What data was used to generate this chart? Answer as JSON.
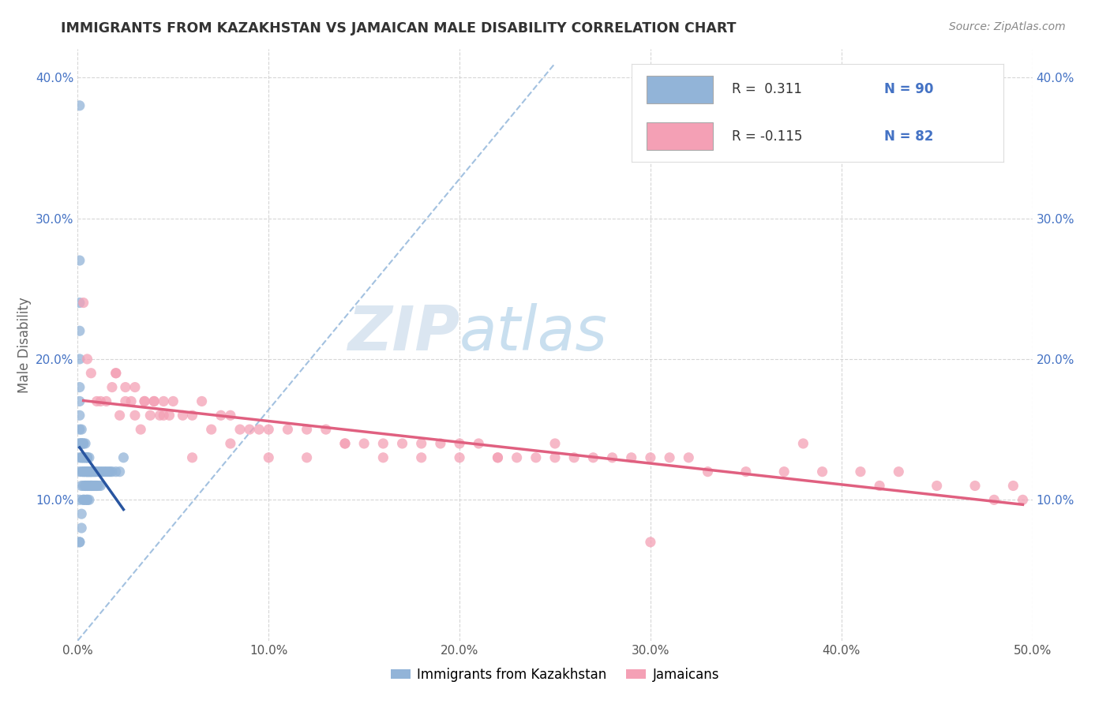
{
  "title": "IMMIGRANTS FROM KAZAKHSTAN VS JAMAICAN MALE DISABILITY CORRELATION CHART",
  "source": "Source: ZipAtlas.com",
  "ylabel": "Male Disability",
  "x_min": 0.0,
  "x_max": 0.5,
  "y_min": 0.0,
  "y_max": 0.42,
  "x_tick_labels": [
    "0.0%",
    "10.0%",
    "20.0%",
    "30.0%",
    "40.0%",
    "50.0%"
  ],
  "x_tick_vals": [
    0.0,
    0.1,
    0.2,
    0.3,
    0.4,
    0.5
  ],
  "y_tick_labels": [
    "10.0%",
    "20.0%",
    "30.0%",
    "40.0%"
  ],
  "y_tick_vals": [
    0.1,
    0.2,
    0.3,
    0.4
  ],
  "series1_color": "#92b4d8",
  "series2_color": "#f4a0b5",
  "series1_line_color": "#2855a0",
  "series2_line_color": "#e06080",
  "series1_R": 0.311,
  "series1_N": 90,
  "series2_R": -0.115,
  "series2_N": 82,
  "series1_label": "Immigrants from Kazakhstan",
  "series2_label": "Jamaicans",
  "grid_color": "#cccccc",
  "title_color": "#333333",
  "axis_label_color": "#666666",
  "watermark_color": "#c5d8ee",
  "diag_color": "#99bbdd",
  "series1_x": [
    0.001,
    0.001,
    0.001,
    0.001,
    0.001,
    0.001,
    0.001,
    0.002,
    0.002,
    0.002,
    0.002,
    0.002,
    0.002,
    0.002,
    0.002,
    0.002,
    0.002,
    0.003,
    0.003,
    0.003,
    0.003,
    0.003,
    0.003,
    0.003,
    0.003,
    0.003,
    0.004,
    0.004,
    0.004,
    0.004,
    0.004,
    0.004,
    0.004,
    0.004,
    0.005,
    0.005,
    0.005,
    0.005,
    0.005,
    0.005,
    0.005,
    0.005,
    0.005,
    0.005,
    0.006,
    0.006,
    0.006,
    0.006,
    0.006,
    0.006,
    0.006,
    0.007,
    0.007,
    0.007,
    0.007,
    0.007,
    0.007,
    0.008,
    0.008,
    0.008,
    0.008,
    0.009,
    0.009,
    0.009,
    0.009,
    0.01,
    0.01,
    0.01,
    0.011,
    0.011,
    0.012,
    0.012,
    0.013,
    0.014,
    0.015,
    0.016,
    0.017,
    0.018,
    0.02,
    0.022,
    0.024,
    0.001,
    0.001,
    0.001,
    0.001,
    0.001,
    0.001,
    0.001,
    0.001,
    0.001
  ],
  "series1_y": [
    0.38,
    0.07,
    0.1,
    0.12,
    0.13,
    0.14,
    0.14,
    0.08,
    0.09,
    0.11,
    0.12,
    0.13,
    0.13,
    0.14,
    0.14,
    0.14,
    0.15,
    0.1,
    0.1,
    0.11,
    0.12,
    0.12,
    0.13,
    0.13,
    0.14,
    0.14,
    0.1,
    0.11,
    0.11,
    0.12,
    0.12,
    0.13,
    0.13,
    0.14,
    0.1,
    0.1,
    0.11,
    0.11,
    0.12,
    0.12,
    0.12,
    0.13,
    0.13,
    0.13,
    0.1,
    0.11,
    0.11,
    0.12,
    0.12,
    0.12,
    0.13,
    0.11,
    0.11,
    0.11,
    0.12,
    0.12,
    0.12,
    0.11,
    0.11,
    0.12,
    0.12,
    0.11,
    0.11,
    0.12,
    0.12,
    0.11,
    0.11,
    0.12,
    0.11,
    0.12,
    0.11,
    0.12,
    0.12,
    0.12,
    0.12,
    0.12,
    0.12,
    0.12,
    0.12,
    0.12,
    0.13,
    0.27,
    0.24,
    0.22,
    0.2,
    0.18,
    0.17,
    0.16,
    0.15,
    0.07
  ],
  "series2_x": [
    0.003,
    0.005,
    0.007,
    0.01,
    0.012,
    0.015,
    0.018,
    0.02,
    0.022,
    0.025,
    0.028,
    0.03,
    0.033,
    0.035,
    0.038,
    0.04,
    0.043,
    0.045,
    0.048,
    0.05,
    0.055,
    0.06,
    0.065,
    0.07,
    0.075,
    0.08,
    0.085,
    0.09,
    0.095,
    0.1,
    0.11,
    0.12,
    0.13,
    0.14,
    0.15,
    0.16,
    0.17,
    0.18,
    0.19,
    0.2,
    0.21,
    0.22,
    0.23,
    0.24,
    0.25,
    0.26,
    0.27,
    0.28,
    0.29,
    0.3,
    0.31,
    0.32,
    0.33,
    0.35,
    0.37,
    0.39,
    0.41,
    0.43,
    0.45,
    0.47,
    0.49,
    0.495,
    0.02,
    0.025,
    0.03,
    0.035,
    0.04,
    0.045,
    0.06,
    0.08,
    0.1,
    0.12,
    0.14,
    0.16,
    0.18,
    0.2,
    0.22,
    0.25,
    0.3,
    0.38,
    0.42,
    0.48
  ],
  "series2_y": [
    0.24,
    0.2,
    0.19,
    0.17,
    0.17,
    0.17,
    0.18,
    0.19,
    0.16,
    0.17,
    0.17,
    0.16,
    0.15,
    0.17,
    0.16,
    0.17,
    0.16,
    0.16,
    0.16,
    0.17,
    0.16,
    0.16,
    0.17,
    0.15,
    0.16,
    0.16,
    0.15,
    0.15,
    0.15,
    0.15,
    0.15,
    0.15,
    0.15,
    0.14,
    0.14,
    0.14,
    0.14,
    0.14,
    0.14,
    0.14,
    0.14,
    0.13,
    0.13,
    0.13,
    0.14,
    0.13,
    0.13,
    0.13,
    0.13,
    0.13,
    0.13,
    0.13,
    0.12,
    0.12,
    0.12,
    0.12,
    0.12,
    0.12,
    0.11,
    0.11,
    0.11,
    0.1,
    0.19,
    0.18,
    0.18,
    0.17,
    0.17,
    0.17,
    0.13,
    0.14,
    0.13,
    0.13,
    0.14,
    0.13,
    0.13,
    0.13,
    0.13,
    0.13,
    0.07,
    0.14,
    0.11,
    0.1
  ]
}
